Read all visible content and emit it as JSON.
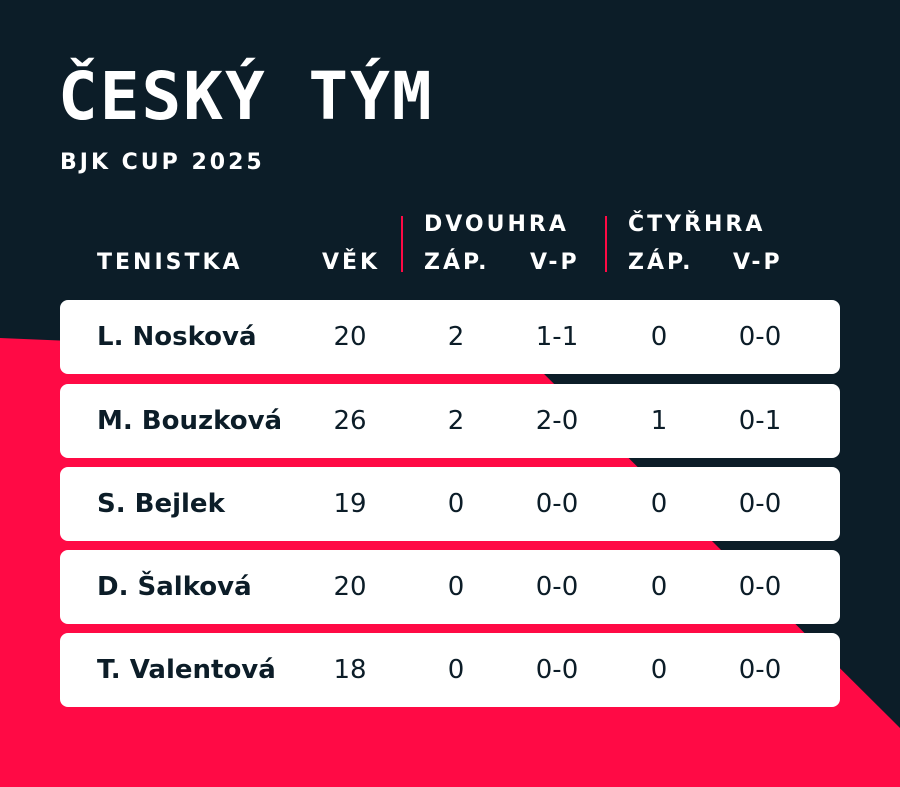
{
  "title": "ČESKÝ TÝM",
  "subtitle": "BJK CUP 2025",
  "colors": {
    "background": "#0c1d28",
    "accent": "#ff0a45",
    "row": "#ffffff"
  },
  "header": {
    "player": "TENISTKA",
    "age": "VĚK",
    "singles": "DVOUHRA",
    "doubles": "ČTYŘHRA",
    "singles_matches": "ZÁP.",
    "singles_wl": "V-P",
    "doubles_matches": "ZÁP.",
    "doubles_wl": "V-P"
  },
  "rows": [
    {
      "name": "L. Nosková",
      "age": "20",
      "s_m": "2",
      "s_wl": "1-1",
      "d_m": "0",
      "d_wl": "0-0"
    },
    {
      "name": "M. Bouzková",
      "age": "26",
      "s_m": "2",
      "s_wl": "2-0",
      "d_m": "1",
      "d_wl": "0-1"
    },
    {
      "name": "S. Bejlek",
      "age": "19",
      "s_m": "0",
      "s_wl": "0-0",
      "d_m": "0",
      "d_wl": "0-0"
    },
    {
      "name": "D. Šalková",
      "age": "20",
      "s_m": "0",
      "s_wl": "0-0",
      "d_m": "0",
      "d_wl": "0-0"
    },
    {
      "name": "T. Valentová",
      "age": "18",
      "s_m": "0",
      "s_wl": "0-0",
      "d_m": "0",
      "d_wl": "0-0"
    }
  ]
}
